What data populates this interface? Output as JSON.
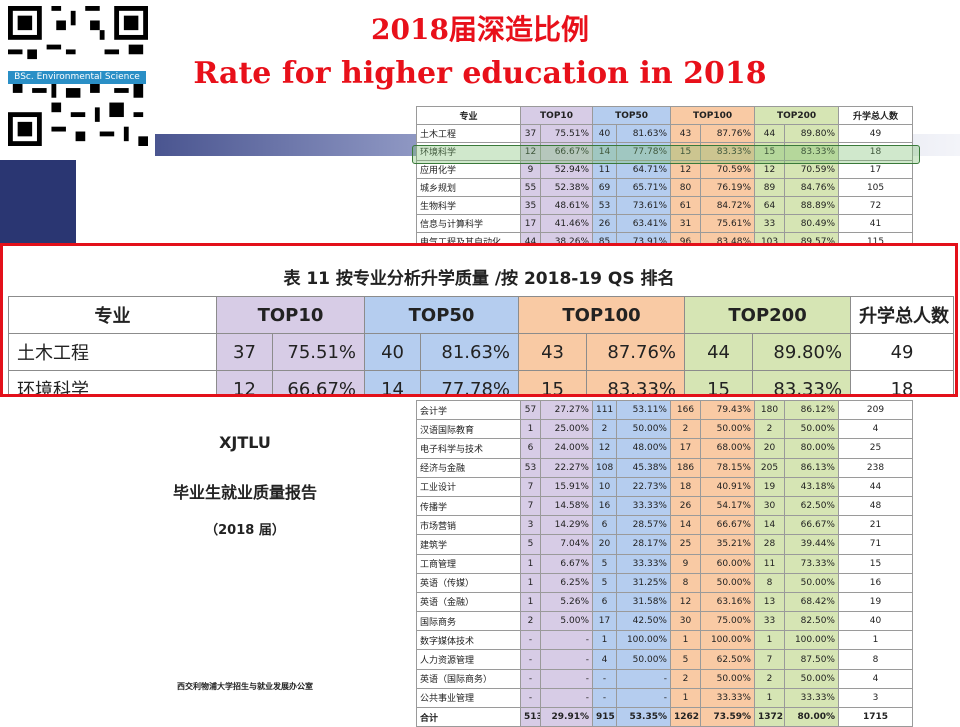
{
  "slide": {
    "title_cn": "2018届深造比例",
    "title_en": "Rate for higher education in 2018",
    "qr_label": "BSc. Environmental Science"
  },
  "report_cover": {
    "org": "XJTLU",
    "title": "毕业生就业质量报告",
    "year": "（2018 届）",
    "office": "西交利物浦大学招生与就业发展办公室"
  },
  "zoom_table": {
    "title": "表 11 按专业分析升学质量 /按 2018-19 QS 排名",
    "headers": [
      "专业",
      "TOP10",
      "TOP50",
      "TOP100",
      "TOP200",
      "升学总人数"
    ],
    "rows": [
      [
        "土木工程",
        "37",
        "75.51%",
        "40",
        "81.63%",
        "43",
        "87.76%",
        "44",
        "89.80%",
        "49"
      ],
      [
        "环境科学",
        "12",
        "66.67%",
        "14",
        "77.78%",
        "15",
        "83.33%",
        "15",
        "83.33%",
        "18"
      ]
    ]
  },
  "small_table": {
    "headers": [
      "专业",
      "TOP10",
      "TOP50",
      "TOP100",
      "TOP200",
      "升学总人数"
    ],
    "top_rows": [
      [
        "土木工程",
        "37",
        "75.51%",
        "40",
        "81.63%",
        "43",
        "87.76%",
        "44",
        "89.80%",
        "49"
      ],
      [
        "环境科学",
        "12",
        "66.67%",
        "14",
        "77.78%",
        "15",
        "83.33%",
        "15",
        "83.33%",
        "18"
      ],
      [
        "应用化学",
        "9",
        "52.94%",
        "11",
        "64.71%",
        "12",
        "70.59%",
        "12",
        "70.59%",
        "17"
      ],
      [
        "城乡规划",
        "55",
        "52.38%",
        "69",
        "65.71%",
        "80",
        "76.19%",
        "89",
        "84.76%",
        "105"
      ],
      [
        "生物科学",
        "35",
        "48.61%",
        "53",
        "73.61%",
        "61",
        "84.72%",
        "64",
        "88.89%",
        "72"
      ],
      [
        "信息与计算科学",
        "17",
        "41.46%",
        "26",
        "63.41%",
        "31",
        "75.61%",
        "33",
        "80.49%",
        "41"
      ],
      [
        "电气工程及其自动化",
        "44",
        "38.26%",
        "85",
        "73.91%",
        "96",
        "83.48%",
        "103",
        "89.57%",
        "115"
      ]
    ],
    "bottom_rows": [
      [
        "会计学",
        "57",
        "27.27%",
        "111",
        "53.11%",
        "166",
        "79.43%",
        "180",
        "86.12%",
        "209"
      ],
      [
        "汉语国际教育",
        "1",
        "25.00%",
        "2",
        "50.00%",
        "2",
        "50.00%",
        "2",
        "50.00%",
        "4"
      ],
      [
        "电子科学与技术",
        "6",
        "24.00%",
        "12",
        "48.00%",
        "17",
        "68.00%",
        "20",
        "80.00%",
        "25"
      ],
      [
        "经济与金融",
        "53",
        "22.27%",
        "108",
        "45.38%",
        "186",
        "78.15%",
        "205",
        "86.13%",
        "238"
      ],
      [
        "工业设计",
        "7",
        "15.91%",
        "10",
        "22.73%",
        "18",
        "40.91%",
        "19",
        "43.18%",
        "44"
      ],
      [
        "传播学",
        "7",
        "14.58%",
        "16",
        "33.33%",
        "26",
        "54.17%",
        "30",
        "62.50%",
        "48"
      ],
      [
        "市场营销",
        "3",
        "14.29%",
        "6",
        "28.57%",
        "14",
        "66.67%",
        "14",
        "66.67%",
        "21"
      ],
      [
        "建筑学",
        "5",
        "7.04%",
        "20",
        "28.17%",
        "25",
        "35.21%",
        "28",
        "39.44%",
        "71"
      ],
      [
        "工商管理",
        "1",
        "6.67%",
        "5",
        "33.33%",
        "9",
        "60.00%",
        "11",
        "73.33%",
        "15"
      ],
      [
        "英语（传媒）",
        "1",
        "6.25%",
        "5",
        "31.25%",
        "8",
        "50.00%",
        "8",
        "50.00%",
        "16"
      ],
      [
        "英语（金融）",
        "1",
        "5.26%",
        "6",
        "31.58%",
        "12",
        "63.16%",
        "13",
        "68.42%",
        "19"
      ],
      [
        "国际商务",
        "2",
        "5.00%",
        "17",
        "42.50%",
        "30",
        "75.00%",
        "33",
        "82.50%",
        "40"
      ],
      [
        "数字媒体技术",
        "-",
        "-",
        "1",
        "100.00%",
        "1",
        "100.00%",
        "1",
        "100.00%",
        "1"
      ],
      [
        "人力资源管理",
        "-",
        "-",
        "4",
        "50.00%",
        "5",
        "62.50%",
        "7",
        "87.50%",
        "8"
      ],
      [
        "英语（国际商务）",
        "-",
        "-",
        "-",
        "-",
        "2",
        "50.00%",
        "2",
        "50.00%",
        "4"
      ],
      [
        "公共事业管理",
        "-",
        "-",
        "-",
        "-",
        "1",
        "33.33%",
        "1",
        "33.33%",
        "3"
      ]
    ],
    "total": [
      "合计",
      "513",
      "29.91%",
      "915",
      "53.35%",
      "1262",
      "73.59%",
      "1372",
      "80.00%",
      "1715"
    ]
  },
  "colors": {
    "title_red": "#e8101a",
    "top10": "#d7cce6",
    "top50": "#b5cdef",
    "top100": "#f9caa4",
    "top200": "#d6e5b4",
    "zoom_border": "#e3101a",
    "highlight_green": "#3a7a3a"
  }
}
